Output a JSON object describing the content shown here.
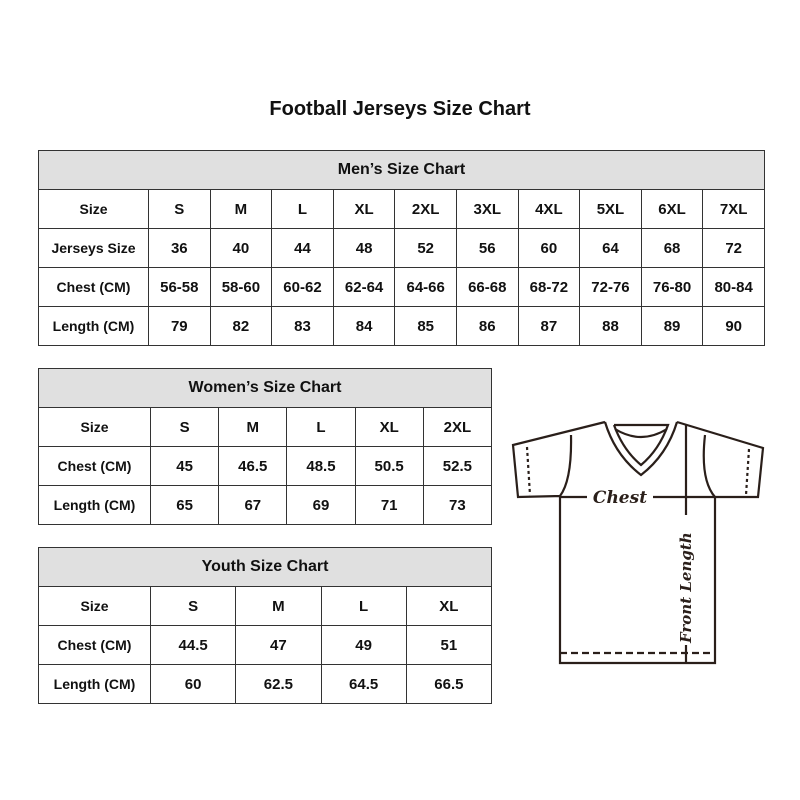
{
  "title": "Football Jerseys Size Chart",
  "men": {
    "heading": "Men’s Size Chart",
    "rows": [
      [
        "Size",
        "S",
        "M",
        "L",
        "XL",
        "2XL",
        "3XL",
        "4XL",
        "5XL",
        "6XL",
        "7XL"
      ],
      [
        "Jerseys Size",
        "36",
        "40",
        "44",
        "48",
        "52",
        "56",
        "60",
        "64",
        "68",
        "72"
      ],
      [
        "Chest (CM)",
        "56-58",
        "58-60",
        "60-62",
        "62-64",
        "64-66",
        "66-68",
        "68-72",
        "72-76",
        "76-80",
        "80-84"
      ],
      [
        "Length (CM)",
        "79",
        "82",
        "83",
        "84",
        "85",
        "86",
        "87",
        "88",
        "89",
        "90"
      ]
    ]
  },
  "women": {
    "heading": "Women’s Size Chart",
    "rows": [
      [
        "Size",
        "S",
        "M",
        "L",
        "XL",
        "2XL"
      ],
      [
        "Chest (CM)",
        "45",
        "46.5",
        "48.5",
        "50.5",
        "52.5"
      ],
      [
        "Length (CM)",
        "65",
        "67",
        "69",
        "71",
        "73"
      ]
    ]
  },
  "youth": {
    "heading": "Youth Size Chart",
    "rows": [
      [
        "Size",
        "S",
        "M",
        "L",
        "XL"
      ],
      [
        "Chest (CM)",
        "44.5",
        "47",
        "49",
        "51"
      ],
      [
        "Length (CM)",
        "60",
        "62.5",
        "64.5",
        "66.5"
      ]
    ]
  },
  "diagram": {
    "chest_label": "Chest",
    "length_label": "Front Length"
  }
}
